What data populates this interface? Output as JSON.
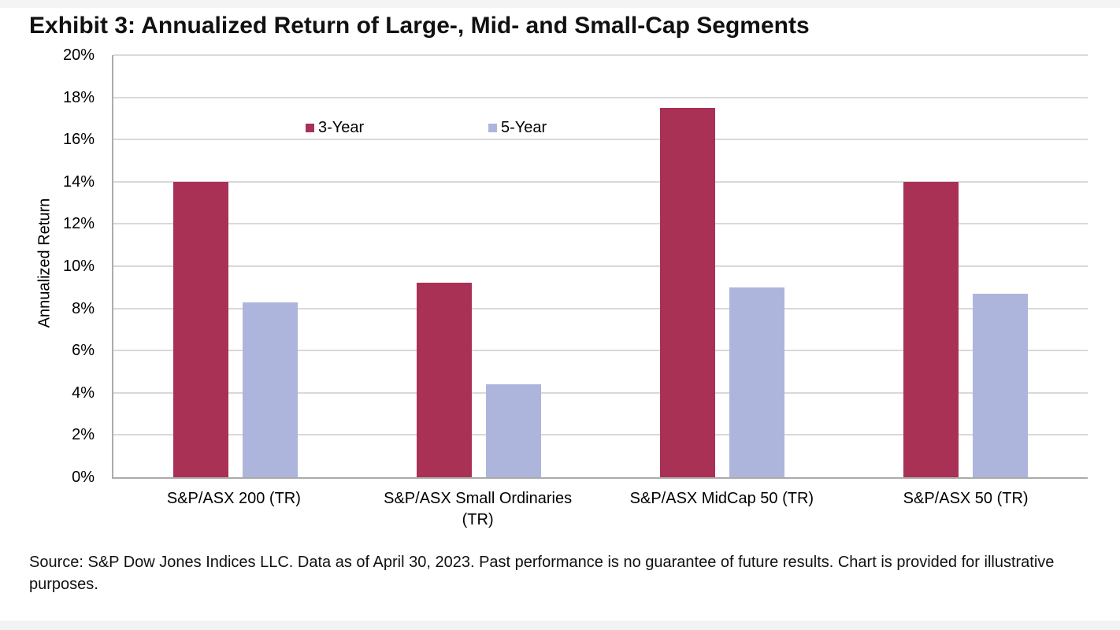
{
  "title": "Exhibit 3: Annualized Return of Large-, Mid- and Small-Cap Segments",
  "source": "Source: S&P Dow Jones Indices LLC. Data as of April 30, 2023. Past performance is no guarantee of future results. Chart is provided for illustrative purposes.",
  "chart_data": {
    "type": "bar",
    "title": "Exhibit 3: Annualized Return of Large-, Mid- and Small-Cap Segments",
    "categories": [
      "S&P/ASX 200 (TR)",
      "S&P/ASX Small Ordinaries (TR)",
      "S&P/ASX MidCap 50 (TR)",
      "S&P/ASX 50 (TR)"
    ],
    "series": [
      {
        "name": "3-Year",
        "color": "#A93155",
        "values": [
          14.0,
          9.2,
          17.5,
          14.0
        ]
      },
      {
        "name": "5-Year",
        "color": "#AEB5DC",
        "values": [
          8.3,
          4.4,
          9.0,
          8.7
        ]
      }
    ],
    "xlabel": "",
    "ylabel": "Annualized Return",
    "ylim": [
      0,
      20
    ],
    "ytick_step": 2,
    "yticks": [
      "20%",
      "18%",
      "16%",
      "14%",
      "12%",
      "10%",
      "8%",
      "6%",
      "4%",
      "2%",
      "0%"
    ],
    "grid": "horizontal",
    "legend_position": "inside-top-left",
    "colors": {
      "gridline": "#d9d9d9",
      "axis_line": "#ababab",
      "series_3yr": "#A93155",
      "series_5yr": "#AEB5DC"
    }
  }
}
